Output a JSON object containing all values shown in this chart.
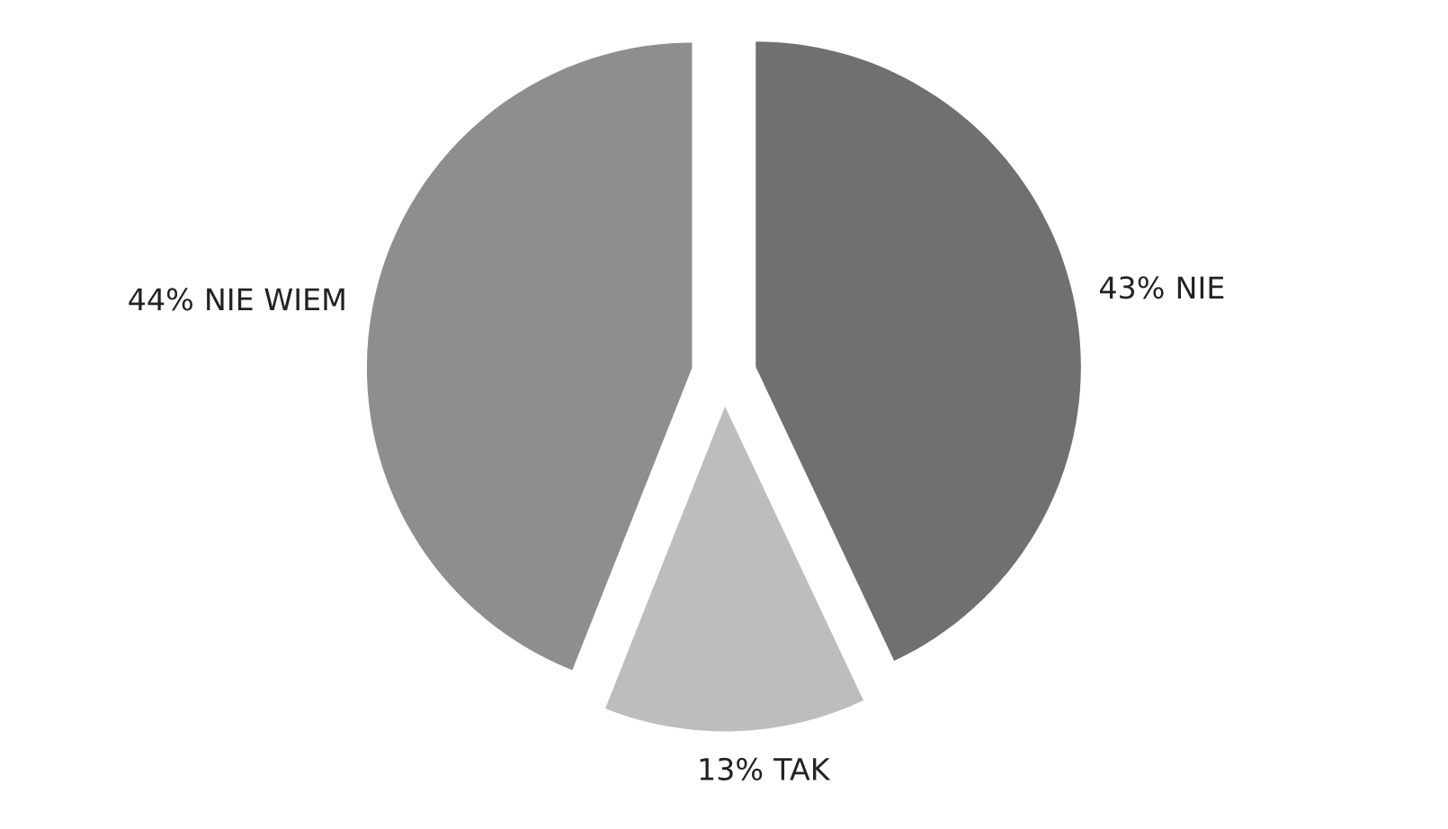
{
  "chart_data": {
    "type": "pie",
    "categories": [
      "NIE",
      "TAK",
      "NIE WIEM"
    ],
    "values": [
      43,
      13,
      44
    ],
    "colors": [
      "#707070",
      "#bdbdbd",
      "#8e8e8e"
    ],
    "value_labels": [
      "43%",
      "13%",
      "44%"
    ]
  }
}
